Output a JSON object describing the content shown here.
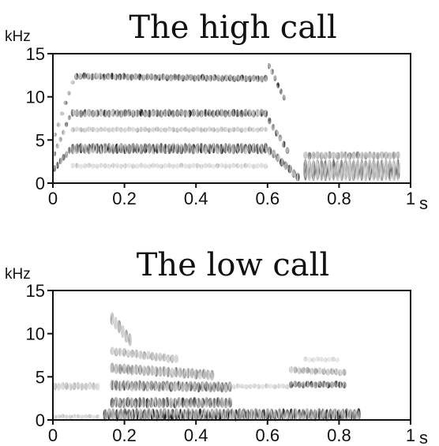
{
  "chart_data": [
    {
      "type": "heatmap",
      "kind": "spectrogram",
      "title": "The high call",
      "y_unit": "kHz",
      "x_unit": "s",
      "xlim": [
        0,
        1
      ],
      "ylim": [
        0,
        15
      ],
      "x_ticks": [
        0,
        0.2,
        0.4,
        0.6,
        0.8,
        1
      ],
      "x_tick_labels": [
        "0",
        "0.2",
        "0.4",
        "0.6",
        "0.8",
        "1"
      ],
      "y_ticks": [
        0,
        5,
        10,
        15
      ],
      "y_tick_labels": [
        "0",
        "5",
        "10",
        "15"
      ],
      "grid": false,
      "colormap": "grayscale",
      "bands": [
        {
          "t_start": 0.0,
          "t_end": 0.05,
          "f_start": 1.5,
          "f_end": 4.0,
          "f_width": 0.8,
          "intensity": 0.95
        },
        {
          "t_start": 0.05,
          "t_end": 0.6,
          "f_start": 4.0,
          "f_end": 4.0,
          "f_width": 1.2,
          "intensity": 1.0
        },
        {
          "t_start": 0.6,
          "t_end": 0.69,
          "f_start": 4.0,
          "f_end": 0.5,
          "f_width": 1.0,
          "intensity": 0.95
        },
        {
          "t_start": 0.0,
          "t_end": 0.05,
          "f_start": 3.0,
          "f_end": 8.0,
          "f_width": 0.6,
          "intensity": 0.7
        },
        {
          "t_start": 0.05,
          "t_end": 0.6,
          "f_start": 8.1,
          "f_end": 8.1,
          "f_width": 0.9,
          "intensity": 0.9
        },
        {
          "t_start": 0.6,
          "t_end": 0.66,
          "f_start": 7.5,
          "f_end": 3.5,
          "f_width": 0.8,
          "intensity": 0.85
        },
        {
          "t_start": 0.0,
          "t_end": 0.06,
          "f_start": 5.0,
          "f_end": 12.3,
          "f_width": 0.5,
          "intensity": 0.6
        },
        {
          "t_start": 0.06,
          "t_end": 0.6,
          "f_start": 12.4,
          "f_end": 12.1,
          "f_width": 0.8,
          "intensity": 0.9
        },
        {
          "t_start": 0.6,
          "t_end": 0.65,
          "f_start": 14.0,
          "f_end": 9.5,
          "f_width": 0.7,
          "intensity": 0.9
        },
        {
          "t_start": 0.05,
          "t_end": 0.6,
          "f_start": 6.2,
          "f_end": 6.2,
          "f_width": 0.6,
          "intensity": 0.35
        },
        {
          "t_start": 0.05,
          "t_end": 0.6,
          "f_start": 2.0,
          "f_end": 2.0,
          "f_width": 0.6,
          "intensity": 0.25
        },
        {
          "t_start": 0.7,
          "t_end": 0.97,
          "f_start": 1.5,
          "f_end": 1.5,
          "f_width": 2.5,
          "intensity": 0.6
        },
        {
          "t_start": 0.7,
          "t_end": 0.97,
          "f_start": 3.2,
          "f_end": 3.2,
          "f_width": 0.9,
          "intensity": 0.55
        }
      ]
    },
    {
      "type": "heatmap",
      "kind": "spectrogram",
      "title": "The low call",
      "y_unit": "kHz",
      "x_unit": "s",
      "xlim": [
        0,
        1
      ],
      "ylim": [
        0,
        15
      ],
      "x_ticks": [
        0,
        0.2,
        0.4,
        0.6,
        0.8,
        1
      ],
      "x_tick_labels": [
        "0",
        "0.2",
        "0.4",
        "0.6",
        "0.8",
        "1"
      ],
      "y_ticks": [
        0,
        5,
        10,
        15
      ],
      "y_tick_labels": [
        "0",
        "5",
        "10",
        "15"
      ],
      "grid": false,
      "colormap": "grayscale",
      "bands": [
        {
          "t_start": 0.0,
          "t_end": 0.13,
          "f_start": 3.9,
          "f_end": 3.9,
          "f_width": 0.9,
          "intensity": 0.35
        },
        {
          "t_start": 0.0,
          "t_end": 0.13,
          "f_start": 0.4,
          "f_end": 0.4,
          "f_width": 0.5,
          "intensity": 0.3
        },
        {
          "t_start": 0.14,
          "t_end": 0.86,
          "f_start": 0.6,
          "f_end": 0.6,
          "f_width": 1.4,
          "intensity": 1.0
        },
        {
          "t_start": 0.16,
          "t_end": 0.5,
          "f_start": 2.0,
          "f_end": 2.0,
          "f_width": 1.2,
          "intensity": 0.85
        },
        {
          "t_start": 0.16,
          "t_end": 0.5,
          "f_start": 4.0,
          "f_end": 3.8,
          "f_width": 1.2,
          "intensity": 0.8
        },
        {
          "t_start": 0.16,
          "t_end": 0.45,
          "f_start": 6.0,
          "f_end": 5.2,
          "f_width": 1.2,
          "intensity": 0.55
        },
        {
          "t_start": 0.16,
          "t_end": 0.35,
          "f_start": 8.0,
          "f_end": 7.0,
          "f_width": 1.0,
          "intensity": 0.4
        },
        {
          "t_start": 0.16,
          "t_end": 0.22,
          "f_start": 12.0,
          "f_end": 9.0,
          "f_width": 1.5,
          "intensity": 0.45
        },
        {
          "t_start": 0.5,
          "t_end": 0.66,
          "f_start": 3.9,
          "f_end": 3.9,
          "f_width": 0.6,
          "intensity": 0.25
        },
        {
          "t_start": 0.66,
          "t_end": 0.82,
          "f_start": 4.1,
          "f_end": 4.1,
          "f_width": 0.8,
          "intensity": 0.95
        },
        {
          "t_start": 0.66,
          "t_end": 0.82,
          "f_start": 5.8,
          "f_end": 5.5,
          "f_width": 0.8,
          "intensity": 0.45
        },
        {
          "t_start": 0.7,
          "t_end": 0.8,
          "f_start": 7.0,
          "f_end": 7.0,
          "f_width": 0.6,
          "intensity": 0.2
        }
      ]
    }
  ]
}
